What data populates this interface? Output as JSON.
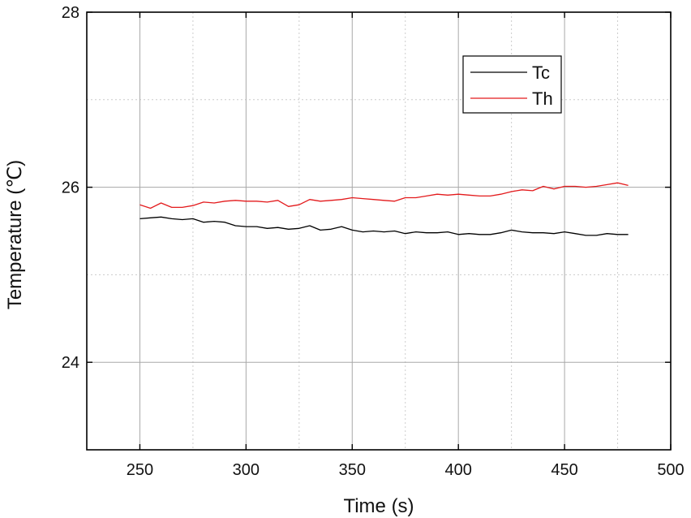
{
  "chart_data": {
    "type": "line",
    "xlabel": "Time (s)",
    "ylabel": "Temperature (℃)",
    "xlim": [
      225,
      500
    ],
    "ylim": [
      23,
      28
    ],
    "x_ticks": [
      250,
      300,
      350,
      400,
      450,
      500
    ],
    "y_ticks": [
      24,
      26,
      28
    ],
    "grid": true,
    "legend": {
      "position": "top-right"
    },
    "series": [
      {
        "name": "Tc",
        "color": "#000000",
        "x": [
          250,
          255,
          260,
          265,
          270,
          275,
          280,
          285,
          290,
          295,
          300,
          305,
          310,
          315,
          320,
          325,
          330,
          335,
          340,
          345,
          350,
          355,
          360,
          365,
          370,
          375,
          380,
          385,
          390,
          395,
          400,
          405,
          410,
          415,
          420,
          425,
          430,
          435,
          440,
          445,
          450,
          455,
          460,
          465,
          470,
          475,
          480
        ],
        "values": [
          25.64,
          25.65,
          25.66,
          25.64,
          25.63,
          25.64,
          25.6,
          25.61,
          25.6,
          25.56,
          25.55,
          25.55,
          25.53,
          25.54,
          25.52,
          25.53,
          25.56,
          25.51,
          25.52,
          25.55,
          25.51,
          25.49,
          25.5,
          25.49,
          25.5,
          25.47,
          25.49,
          25.48,
          25.48,
          25.49,
          25.46,
          25.47,
          25.46,
          25.46,
          25.48,
          25.51,
          25.49,
          25.48,
          25.48,
          25.47,
          25.49,
          25.47,
          25.45,
          25.45,
          25.47,
          25.46,
          25.46
        ]
      },
      {
        "name": "Th",
        "color": "#e31a1c",
        "x": [
          250,
          255,
          260,
          265,
          270,
          275,
          280,
          285,
          290,
          295,
          300,
          305,
          310,
          315,
          320,
          325,
          330,
          335,
          340,
          345,
          350,
          355,
          360,
          365,
          370,
          375,
          380,
          385,
          390,
          395,
          400,
          405,
          410,
          415,
          420,
          425,
          430,
          435,
          440,
          445,
          450,
          455,
          460,
          465,
          470,
          475,
          480
        ],
        "values": [
          25.8,
          25.76,
          25.82,
          25.77,
          25.77,
          25.79,
          25.83,
          25.82,
          25.84,
          25.85,
          25.84,
          25.84,
          25.83,
          25.85,
          25.78,
          25.8,
          25.86,
          25.84,
          25.85,
          25.86,
          25.88,
          25.87,
          25.86,
          25.85,
          25.84,
          25.88,
          25.88,
          25.9,
          25.92,
          25.91,
          25.92,
          25.91,
          25.9,
          25.9,
          25.92,
          25.95,
          25.97,
          25.96,
          26.01,
          25.98,
          26.01,
          26.01,
          26.0,
          26.01,
          26.03,
          26.05,
          26.02
        ]
      }
    ]
  }
}
